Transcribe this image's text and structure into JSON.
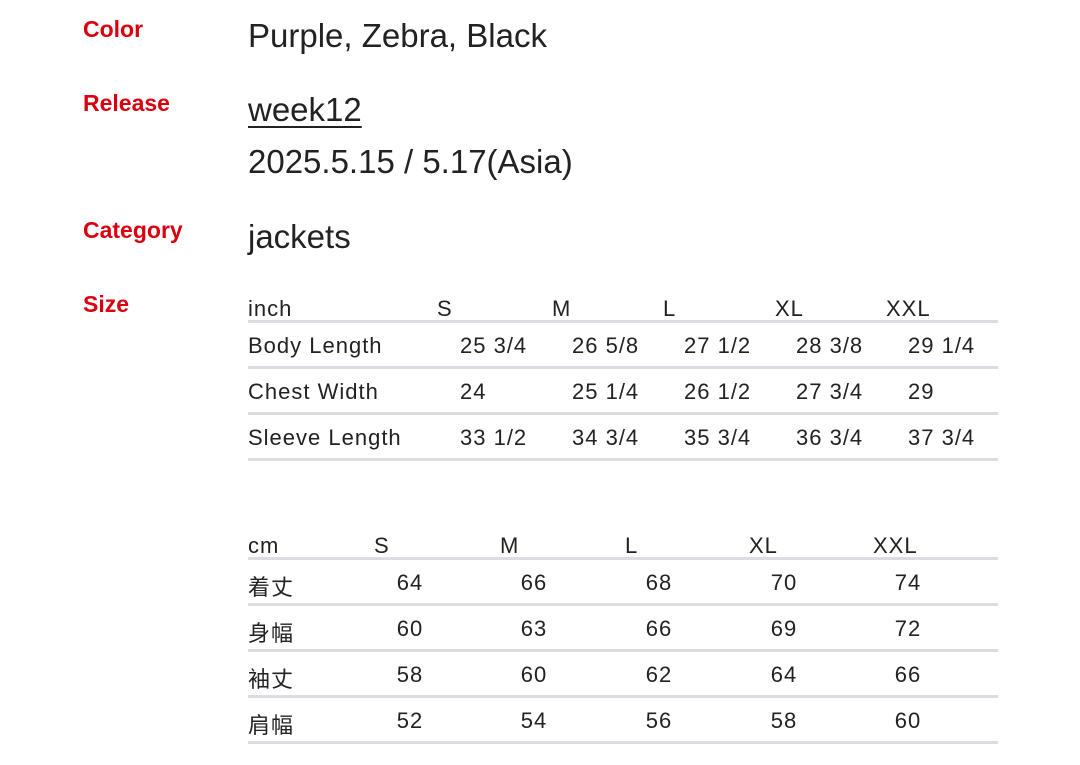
{
  "details": {
    "color_label": "Color",
    "color_value": "Purple, Zebra, Black",
    "release_label": "Release",
    "release_week": "week12",
    "release_date": "2025.5.15 / 5.17(Asia)",
    "category_label": "Category",
    "category_value": "jackets",
    "size_label": "Size"
  },
  "inch_table": {
    "headers": [
      "inch",
      "S",
      "M",
      "L",
      "XL",
      "XXL"
    ],
    "rows": [
      [
        "Body Length",
        "25 3/4",
        "26 5/8",
        "27 1/2",
        "28 3/8",
        "29 1/4"
      ],
      [
        "Chest Width",
        "24",
        "25 1/4",
        "26 1/2",
        "27 3/4",
        "29"
      ],
      [
        "Sleeve Length",
        "33 1/2",
        "34 3/4",
        "35 3/4",
        "36 3/4",
        "37 3/4"
      ]
    ]
  },
  "cm_table": {
    "headers": [
      "cm",
      "S",
      "M",
      "L",
      "XL",
      "XXL"
    ],
    "rows": [
      [
        "着丈",
        "64",
        "66",
        "68",
        "70",
        "74"
      ],
      [
        "身幅",
        "60",
        "63",
        "66",
        "69",
        "72"
      ],
      [
        "袖丈",
        "58",
        "60",
        "62",
        "64",
        "66"
      ],
      [
        "肩幅",
        "52",
        "54",
        "56",
        "58",
        "60"
      ]
    ]
  },
  "colors": {
    "label_red": "#d9000f",
    "divider": "#dcdce2"
  }
}
